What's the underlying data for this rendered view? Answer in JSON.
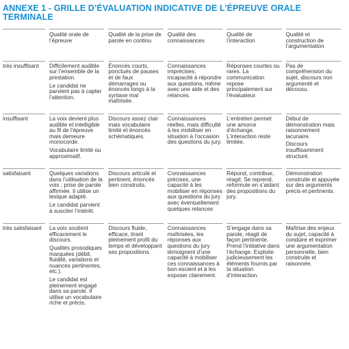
{
  "header": {
    "title": "ANNEXE 1 - GRILLE D’ÉVALUATION INDICATIVE DE L’ÉPREUVE ORALE TERMINALE"
  },
  "table": {
    "columns": [
      "Qualité orale de l’épreuve",
      "Qualité de la prise de parole en continu",
      "Qualité des connaissances",
      "Qualité de l’interaction",
      "Qualité et construction de l’argumentation"
    ],
    "rows": [
      {
        "level": "très insuffisant",
        "cells": [
          [
            "Difficilement audible sur l’ensemble de la prestation.",
            "Le candidat ne parvient pas à capter l’attention."
          ],
          [
            "Énoncés courts, ponctués de pauses et de faux démarrages ou énoncés longs à la syntaxe mal maîtrisée."
          ],
          [
            "Connaissances imprécises, incapacité à répondre aux questions, même avec une aide et des relances."
          ],
          [
            "Réponses courtes ou rares. La communication repose principalement sur l’évaluateur."
          ],
          [
            "Pas de compréhension du sujet, discours non argumenté et décousu."
          ]
        ]
      },
      {
        "level": "insuffisant",
        "cells": [
          [
            "La voix devient plus audible et intelligible au fil de l’épreuve mais demeure monocorde.",
            "Vocabulaire limité ou approximatif."
          ],
          [
            "Discours assez clair mais vocabulaire limité et énoncés schématiques."
          ],
          [
            "Connaissances réelles, mais difficulté à les mobiliser en situation à l’occasion des questions du jury."
          ],
          [
            "L’entretien permet une amorce d’échange. L’interaction reste limitée."
          ],
          [
            "Début de démonstration mais raisonnement lacunaire.",
            "Discours insuffisamment structuré."
          ]
        ]
      },
      {
        "level": "satisfaisant",
        "cells": [
          [
            "Quelques variations dans l’utilisation de la voix ; prise de parole affirmée. Il utilise un lexique adapté.",
            "Le candidat parvient à susciter l’intérêt."
          ],
          [
            "Discours articulé et pertinent, énoncés bien construits."
          ],
          [
            "Connaissances précises, une capacité à les mobiliser en réponses aux questions du jury avec éventuellement quelques relances"
          ],
          [
            "Répond, contribue, réagit. Se reprend, reformule en s’aidant des propositions du jury."
          ],
          [
            "Démonstration construite et appuyée sur des arguments précis et pertinents."
          ]
        ]
      },
      {
        "level": "très satisfaisant",
        "cells": [
          [
            "La voix soutient efficacement le discours.",
            "Qualités prosodiques marquées (débit, fluidité, variations et nuances pertinentes, etc.).",
            "Le candidat est pleinement engagé dans sa parole. Il utilise un vocabulaire riche et précis."
          ],
          [
            "Discours fluide, efficace, tirant pleinement profit du temps et développant ses propositions."
          ],
          [
            "Connaissances maîtrisées, les réponses aux questions du jury témoignent d’une capacité à mobiliser ces connaissances à bon escient et à les exposer clairement."
          ],
          [
            "S’engage dans sa parole, réagit de façon pertinente. Prend l’initiative dans l’échange. Exploite judicieusement les éléments fournis par la situation d’interaction."
          ],
          [
            "Maîtrise des enjeux du sujet, capacité à conduire et exprimer une argumentation personnelle, bien construite et raisonnée."
          ]
        ]
      }
    ]
  }
}
